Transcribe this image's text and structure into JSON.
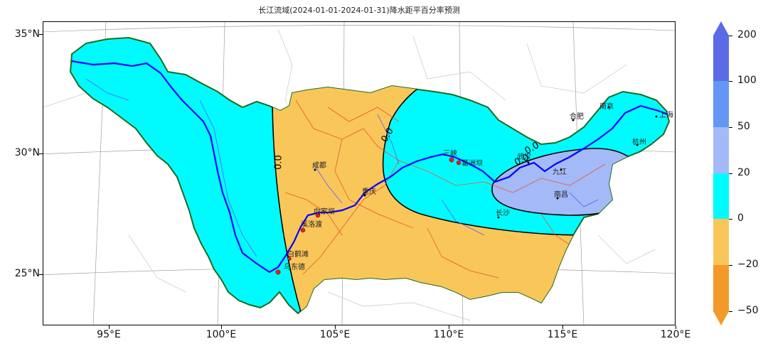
{
  "title": "长江流域(2024-01-01-2024-01-31)降水距平百分率预测",
  "map": {
    "lat_labels": [
      "35°N",
      "30°N",
      "25°N"
    ],
    "lon_labels": [
      "95°E",
      "100°E",
      "105°E",
      "110°E",
      "115°E",
      "120°E"
    ],
    "colors": {
      "orange_dark": "#f39a2a",
      "orange": "#f9c65a",
      "cyan": "#00fbff",
      "lightblue": "#a4b9f7",
      "blue": "#6596f5",
      "darkblue": "#5b6be6",
      "basin_border": "#1e6b1e",
      "river": "#0000ff",
      "province_border": "#e65a2a",
      "graticule": "#9a9a9a"
    },
    "cities": [
      {
        "name": "成都"
      },
      {
        "name": "重庆"
      },
      {
        "name": "向家坝"
      },
      {
        "name": "溪洛渡"
      },
      {
        "name": "白鹤滩"
      },
      {
        "name": "乌东德"
      },
      {
        "name": "三峡"
      },
      {
        "name": "葛洲坝"
      },
      {
        "name": "武汉"
      },
      {
        "name": "长沙"
      },
      {
        "name": "南昌"
      },
      {
        "name": "合肥"
      },
      {
        "name": "南京"
      },
      {
        "name": "上海"
      },
      {
        "name": "杭州"
      },
      {
        "name": "九江"
      }
    ],
    "contour_labels": [
      "0.0",
      "0.0",
      "0.0",
      "0.0"
    ]
  },
  "colorbar": {
    "ticks": [
      "200",
      "100",
      "50",
      "20",
      "0",
      "−20",
      "−50"
    ],
    "bins": [
      {
        "range": "-∞ – −50",
        "color": "#f39a2a"
      },
      {
        "range": "−50 – −20",
        "color": "#f39a2a"
      },
      {
        "range": "−20 – 0",
        "color": "#f9c65a"
      },
      {
        "range": "0 – 20",
        "color": "#00fbff"
      },
      {
        "range": "20 – 50",
        "color": "#a4b9f7"
      },
      {
        "range": "50 – 100",
        "color": "#6596f5"
      },
      {
        "range": "100 – 200",
        "color": "#5b6be6"
      }
    ]
  }
}
